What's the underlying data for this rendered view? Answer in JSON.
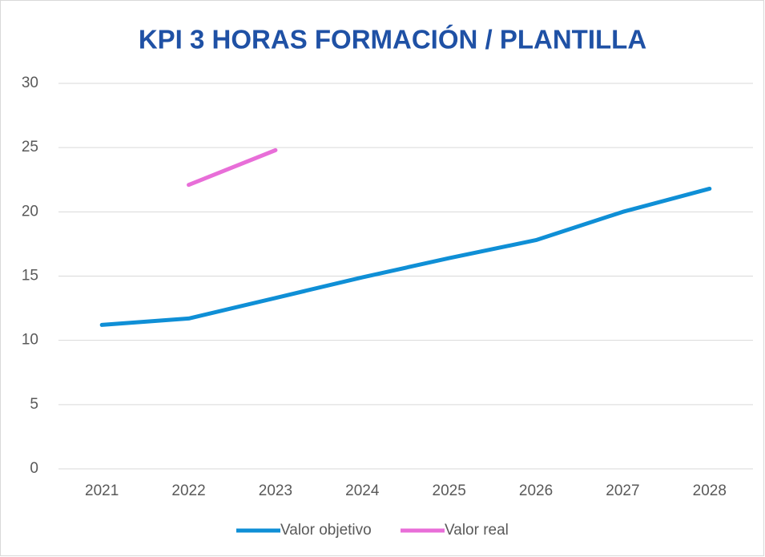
{
  "chart_data": {
    "type": "line",
    "title": "KPI 3 HORAS FORMACIÓN / PLANTILLA",
    "categories": [
      "2021",
      "2022",
      "2023",
      "2024",
      "2025",
      "2026",
      "2027",
      "2028"
    ],
    "series": [
      {
        "name": "Valor objetivo",
        "color": "#0f8fd6",
        "values": [
          11.2,
          11.7,
          13.3,
          14.9,
          16.4,
          17.8,
          20.0,
          21.8
        ]
      },
      {
        "name": "Valor real",
        "color": "#e86ed8",
        "values": [
          null,
          22.1,
          24.8,
          null,
          null,
          null,
          null,
          null
        ]
      }
    ],
    "ylim": [
      0,
      30
    ],
    "yticks": [
      0,
      5,
      10,
      15,
      20,
      25,
      30
    ],
    "grid": true,
    "legend": "bottom"
  }
}
